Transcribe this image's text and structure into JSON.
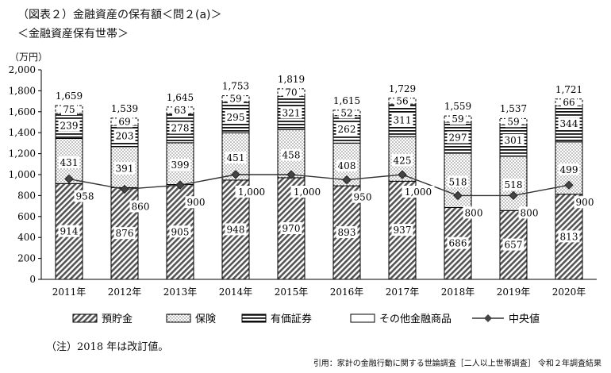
{
  "title": "（図表２）金融資産の保有額＜問２(a)＞",
  "subtitle": "＜金融資産保有世帯＞",
  "unit": "（万円）",
  "note": "（注）2018 年は改訂値。",
  "source": "引用：家計の金融行動に関する世論調査［二人以上世帯調査］ 令和２年調査結果",
  "chart_data": {
    "type": "bar",
    "stacked": true,
    "categories": [
      "2011年",
      "2012年",
      "2013年",
      "2014年",
      "2015年",
      "2016年",
      "2017年",
      "2018年",
      "2019年",
      "2020年"
    ],
    "ylim": [
      0,
      2000
    ],
    "yticks": [
      0,
      200,
      400,
      600,
      800,
      1000,
      1200,
      1400,
      1600,
      1800,
      2000
    ],
    "ytick_labels": [
      "0",
      "200",
      "400",
      "600",
      "800",
      "1,000",
      "1,200",
      "1,400",
      "1,600",
      "1,800",
      "2,000"
    ],
    "series": [
      {
        "name": "預貯金",
        "values": [
          914,
          876,
          905,
          948,
          970,
          893,
          937,
          686,
          657,
          813
        ],
        "labels": [
          "914",
          "876",
          "905",
          "948",
          "970",
          "893",
          "937",
          "686",
          "657",
          "813"
        ]
      },
      {
        "name": "保険",
        "values": [
          431,
          391,
          399,
          451,
          458,
          408,
          425,
          518,
          518,
          499
        ],
        "labels": [
          "431",
          "391",
          "399",
          "451",
          "458",
          "408",
          "425",
          "518",
          "518",
          "499"
        ]
      },
      {
        "name": "有価証券",
        "values": [
          239,
          203,
          278,
          295,
          321,
          262,
          311,
          297,
          301,
          344
        ],
        "labels": [
          "239",
          "203",
          "278",
          "295",
          "321",
          "262",
          "311",
          "297",
          "301",
          "344"
        ]
      },
      {
        "name": "その他金融商品",
        "values": [
          75,
          69,
          63,
          59,
          70,
          52,
          56,
          59,
          59,
          66
        ],
        "labels": [
          "75",
          "69",
          "63",
          "59",
          "70",
          "52",
          "56",
          "59",
          "59",
          "66"
        ]
      }
    ],
    "totals": [
      1659,
      1539,
      1645,
      1753,
      1819,
      1615,
      1729,
      1559,
      1537,
      1721
    ],
    "total_labels": [
      "1,659",
      "1,539",
      "1,645",
      "1,753",
      "1,819",
      "1,615",
      "1,729",
      "1,559",
      "1,537",
      "1,721"
    ],
    "median": {
      "name": "中央値",
      "values": [
        958,
        860,
        900,
        1000,
        1000,
        950,
        1000,
        800,
        800,
        900
      ],
      "labels": [
        "958",
        "860",
        "900",
        "1,000",
        "1,000",
        "950",
        "1,000",
        "800",
        "800",
        "900"
      ]
    },
    "legend_position": "bottom"
  }
}
